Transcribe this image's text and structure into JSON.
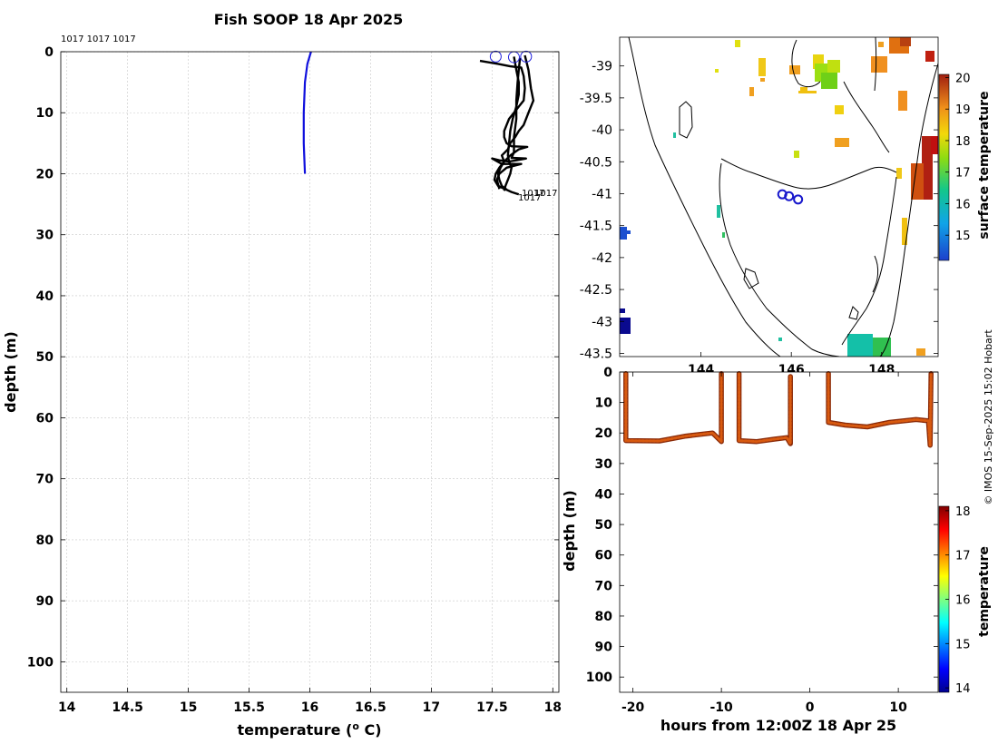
{
  "figure": {
    "title": "Fish SOOP 18 Apr 2025",
    "credit": "© IMOS 15-Sep-2025 15:02 Hobart"
  },
  "chart_data": [
    {
      "id": "profile",
      "type": "line",
      "xlabel": "temperature (o C)",
      "xlabel_main": "temperature (",
      "xlabel_sup": "o",
      "xlabel_tail": " C)",
      "ylabel": "depth (m)",
      "xlim": [
        13.95,
        18.05
      ],
      "ylim": [
        105,
        0
      ],
      "y_inverted": true,
      "grid": true,
      "xticks": [
        14,
        14.5,
        15,
        15.5,
        16,
        16.5,
        17,
        17.5,
        18
      ],
      "xtick_labels": [
        "14",
        "14.5",
        "15",
        "15.5",
        "16",
        "16.5",
        "17",
        "17.5",
        "18"
      ],
      "yticks": [
        0,
        10,
        20,
        30,
        40,
        50,
        60,
        70,
        80,
        90,
        100
      ],
      "ytick_labels": [
        "0",
        "10",
        "20",
        "30",
        "40",
        "50",
        "60",
        "70",
        "80",
        "90",
        "100"
      ],
      "top_label": "1017 1017 1017",
      "end_labels": [
        "1017",
        "1017",
        "1017"
      ],
      "series": [
        {
          "color": "#1010dd",
          "points": [
            [
              16.01,
              0
            ],
            [
              15.98,
              2
            ],
            [
              15.96,
              5
            ],
            [
              15.95,
              10
            ],
            [
              15.95,
              15
            ],
            [
              15.96,
              20
            ]
          ]
        },
        {
          "color": "#000000",
          "points": [
            [
              17.77,
              0.6
            ],
            [
              17.8,
              3
            ],
            [
              17.82,
              6
            ],
            [
              17.84,
              8
            ],
            [
              17.8,
              10
            ],
            [
              17.76,
              12
            ],
            [
              17.72,
              13
            ],
            [
              17.69,
              14
            ],
            [
              17.65,
              15
            ],
            [
              17.63,
              16
            ],
            [
              17.58,
              17
            ],
            [
              17.6,
              18
            ],
            [
              17.57,
              19
            ],
            [
              17.55,
              20
            ],
            [
              17.56,
              21
            ],
            [
              17.58,
              22
            ],
            [
              17.62,
              22.6
            ]
          ]
        },
        {
          "color": "#000000",
          "points": [
            [
              17.68,
              0.8
            ],
            [
              17.7,
              3
            ],
            [
              17.72,
              5
            ],
            [
              17.72,
              7
            ],
            [
              17.7,
              9
            ],
            [
              17.67,
              11
            ],
            [
              17.65,
              13
            ],
            [
              17.64,
              15
            ],
            [
              17.63,
              17
            ],
            [
              17.64,
              18
            ],
            [
              17.66,
              19
            ],
            [
              17.65,
              20
            ],
            [
              17.63,
              21
            ],
            [
              17.61,
              22
            ],
            [
              17.6,
              22.8
            ]
          ]
        },
        {
          "color": "#000000",
          "points": [
            [
              17.4,
              1.5
            ],
            [
              17.55,
              2
            ],
            [
              17.65,
              2.4
            ],
            [
              17.74,
              2.6
            ],
            [
              17.76,
              4
            ],
            [
              17.77,
              6
            ],
            [
              17.76,
              8
            ],
            [
              17.72,
              9
            ],
            [
              17.68,
              10
            ],
            [
              17.64,
              11
            ],
            [
              17.62,
              12
            ],
            [
              17.6,
              13
            ],
            [
              17.6,
              14
            ],
            [
              17.62,
              15
            ],
            [
              17.66,
              15.5
            ],
            [
              17.79,
              15.6
            ],
            [
              17.72,
              16
            ],
            [
              17.65,
              17
            ],
            [
              17.62,
              17.6
            ],
            [
              17.6,
              18
            ],
            [
              17.56,
              19
            ],
            [
              17.53,
              20
            ],
            [
              17.52,
              21
            ],
            [
              17.55,
              22
            ],
            [
              17.66,
              23
            ],
            [
              17.72,
              23.4
            ]
          ]
        },
        {
          "color": "#000000",
          "points": [
            [
              17.73,
              1
            ],
            [
              17.72,
              3
            ],
            [
              17.71,
              5
            ],
            [
              17.7,
              8
            ],
            [
              17.7,
              11
            ],
            [
              17.68,
              14
            ],
            [
              17.68,
              16.5
            ],
            [
              17.66,
              17.4
            ],
            [
              17.78,
              17.5
            ],
            [
              17.7,
              17.8
            ],
            [
              17.64,
              18
            ],
            [
              17.56,
              17.8
            ],
            [
              17.5,
              17.5
            ],
            [
              17.58,
              18.4
            ],
            [
              17.74,
              18.4
            ],
            [
              17.62,
              19
            ],
            [
              17.56,
              20
            ],
            [
              17.54,
              21
            ],
            [
              17.56,
              22.5
            ]
          ]
        }
      ],
      "markers": [
        [
          17.53,
          0.8
        ],
        [
          17.68,
          0.9
        ],
        [
          17.78,
          0.8
        ]
      ]
    },
    {
      "id": "map",
      "type": "heatmap",
      "xlim": [
        142.2,
        149.25
      ],
      "ylim": [
        -43.55,
        -38.55
      ],
      "xticks": [
        144,
        146,
        148
      ],
      "xtick_labels": [
        "144",
        "146",
        "148"
      ],
      "yticks": [
        -39,
        -39.5,
        -40,
        -40.5,
        -41,
        -41.5,
        -42,
        -42.5,
        -43,
        -43.5
      ],
      "ytick_labels": [
        "-39",
        "-39.5",
        "-40",
        "-40.5",
        "-41",
        "-41.5",
        "-42",
        "-42.5",
        "-43",
        "-43.5"
      ],
      "colorbar_label": "surface temperature",
      "colorbar_range": [
        14.2,
        20.1
      ],
      "colorbar_ticks": [
        15,
        16,
        17,
        18,
        19,
        20
      ],
      "colorbar_tick_labels": [
        "15",
        "16",
        "17",
        "18",
        "19",
        "20"
      ],
      "stations": [
        [
          145.8,
          -41.01
        ],
        [
          145.95,
          -41.04
        ],
        [
          146.15,
          -41.09
        ]
      ]
    },
    {
      "id": "section",
      "type": "scatter",
      "xlabel": "hours from 12:00Z 18 Apr 25",
      "ylabel": "depth (m)",
      "xlim": [
        -21.5,
        14.5
      ],
      "ylim": [
        105,
        0
      ],
      "y_inverted": true,
      "xticks": [
        -20,
        -10,
        0,
        10
      ],
      "xtick_labels": [
        "-20",
        "-10",
        "0",
        "10"
      ],
      "yticks": [
        0,
        10,
        20,
        30,
        40,
        50,
        60,
        70,
        80,
        90,
        100
      ],
      "ytick_labels": [
        "0",
        "10",
        "20",
        "30",
        "40",
        "50",
        "60",
        "70",
        "80",
        "90",
        "100"
      ],
      "colorbar_label": "temperature",
      "colorbar_range": [
        13.9,
        18.1
      ],
      "colorbar_ticks": [
        14,
        15,
        16,
        17,
        18
      ],
      "colorbar_tick_labels": [
        "14",
        "15",
        "16",
        "17",
        "18"
      ],
      "series": [
        {
          "temperature": 17.7,
          "points": [
            [
              -20.8,
              0.5
            ],
            [
              -20.8,
              22.5
            ],
            [
              -17,
              22.6
            ],
            [
              -14,
              21
            ],
            [
              -11,
              20
            ],
            [
              -10,
              22.8
            ],
            [
              -10,
              0.5
            ]
          ]
        },
        {
          "temperature": 17.8,
          "points": [
            [
              -8,
              0.5
            ],
            [
              -8,
              22.5
            ],
            [
              -6,
              22.8
            ],
            [
              -4,
              22
            ],
            [
              -2.6,
              21.5
            ],
            [
              -2.2,
              23.5
            ],
            [
              -2.2,
              1.5
            ]
          ]
        },
        {
          "temperature": 17.8,
          "points": [
            [
              2.1,
              0.5
            ],
            [
              2.1,
              16.5
            ],
            [
              4,
              17.4
            ],
            [
              6.5,
              18
            ],
            [
              9,
              16.5
            ],
            [
              12,
              15.6
            ],
            [
              13.4,
              16
            ],
            [
              13.6,
              24
            ],
            [
              13.7,
              0.5
            ]
          ]
        }
      ]
    }
  ]
}
